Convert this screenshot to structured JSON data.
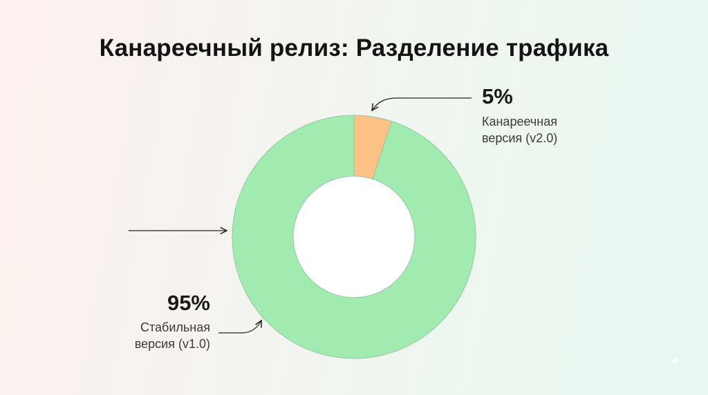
{
  "chart_data": {
    "type": "pie",
    "title": "Канареечный релиз: Разделение трафика",
    "donut": true,
    "slices": [
      {
        "label_lines": [
          "Канареечная",
          "версия (v2.0)"
        ],
        "value": 5,
        "value_label": "5%",
        "color": "#fcc184"
      },
      {
        "label_lines": [
          "Стабильная",
          "версия (v1.0)"
        ],
        "value": 95,
        "value_label": "95%",
        "color": "#a1ebb1"
      }
    ]
  },
  "colors": {
    "stroke": "#8fc9a0",
    "hole": "#ffffff"
  }
}
